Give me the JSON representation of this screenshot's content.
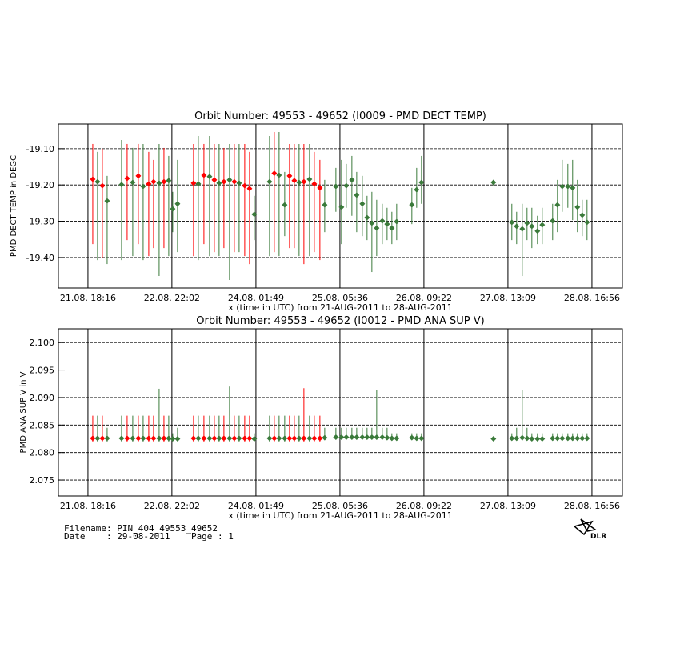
{
  "chart_data": [
    {
      "type": "errorbar",
      "title": "Orbit Number: 49553 - 49652 (I0009 - PMD DECT TEMP)",
      "x_label": "x (time in UTC) from 21-AUG-2011 to 28-AUG-2011",
      "y_label": "PMD DECT TEMP in DEGC",
      "xlim": [
        8.5,
        195
      ],
      "xticks": [
        {
          "value": 18.27,
          "label": "21.08. 18:16"
        },
        {
          "value": 46.03,
          "label": "22.08. 22:02"
        },
        {
          "value": 73.82,
          "label": "24.08. 01:49"
        },
        {
          "value": 101.6,
          "label": "25.08. 05:36"
        },
        {
          "value": 129.37,
          "label": "26.08. 09:22"
        },
        {
          "value": 157.15,
          "label": "27.08. 13:09"
        },
        {
          "value": 184.93,
          "label": "28.08. 16:56"
        }
      ],
      "ylim": [
        -19.484,
        -19.032
      ],
      "yticks": [
        {
          "value": -19.4,
          "label": "-19.40"
        },
        {
          "value": -19.3,
          "label": "-19.30"
        },
        {
          "value": -19.2,
          "label": "-19.20"
        },
        {
          "value": -19.1,
          "label": "-19.10"
        }
      ],
      "grid": true,
      "x": [
        19.86,
        21.44,
        23.03,
        24.62,
        29.38,
        31.23,
        33.08,
        34.93,
        36.52,
        38.37,
        39.96,
        41.81,
        43.4,
        44.98,
        46.3,
        47.89,
        53.18,
        54.77,
        56.62,
        58.47,
        60.06,
        61.64,
        63.23,
        65.08,
        66.67,
        68.26,
        70.11,
        71.7,
        73.28,
        78.31,
        79.89,
        81.48,
        83.33,
        84.92,
        86.51,
        88.09,
        89.68,
        91.53,
        93.12,
        94.97,
        96.56,
        100.26,
        102.11,
        103.7,
        105.55,
        107.14,
        108.99,
        110.57,
        112.16,
        113.75,
        115.6,
        117.19,
        118.77,
        120.36,
        125.38,
        126.97,
        128.56,
        152.36,
        158.44,
        160.03,
        161.88,
        163.47,
        165.06,
        166.91,
        168.49,
        171.93,
        173.52,
        175.11,
        176.96,
        178.54,
        180.13,
        181.72,
        183.31
      ],
      "values": [
        -19.184,
        -19.191,
        -19.202,
        -19.244,
        -19.199,
        -19.182,
        -19.193,
        -19.175,
        -19.204,
        -19.197,
        -19.191,
        -19.195,
        -19.191,
        -19.188,
        -19.266,
        -19.252,
        -19.195,
        -19.197,
        -19.173,
        -19.177,
        -19.186,
        -19.195,
        -19.191,
        -19.186,
        -19.191,
        -19.195,
        -19.202,
        -19.21,
        -19.281,
        -19.191,
        -19.168,
        -19.173,
        -19.255,
        -19.175,
        -19.188,
        -19.193,
        -19.191,
        -19.184,
        -19.197,
        -19.208,
        -19.255,
        -19.204,
        -19.261,
        -19.202,
        -19.186,
        -19.228,
        -19.252,
        -19.29,
        -19.305,
        -19.319,
        -19.299,
        -19.308,
        -19.319,
        -19.301,
        -19.255,
        -19.213,
        -19.193,
        -19.193,
        -19.303,
        -19.314,
        -19.321,
        -19.305,
        -19.314,
        -19.327,
        -19.31,
        -19.299,
        -19.255,
        -19.204,
        -19.204,
        -19.208,
        -19.261,
        -19.283,
        -19.303
      ],
      "low": [
        -19.363,
        -19.407,
        -19.4,
        -19.418,
        -19.407,
        -19.352,
        -19.396,
        -19.363,
        -19.407,
        -19.396,
        -19.374,
        -19.451,
        -19.374,
        -19.396,
        -19.33,
        -19.385,
        -19.396,
        -19.407,
        -19.363,
        -19.396,
        -19.385,
        -19.396,
        -19.374,
        -19.462,
        -19.385,
        -19.385,
        -19.396,
        -19.418,
        -19.352,
        -19.396,
        -19.385,
        -19.396,
        -19.341,
        -19.374,
        -19.374,
        -19.396,
        -19.418,
        -19.396,
        -19.385,
        -19.407,
        -19.33,
        -19.274,
        -19.363,
        -19.263,
        -19.285,
        -19.33,
        -19.341,
        -19.352,
        -19.44,
        -19.396,
        -19.363,
        -19.352,
        -19.363,
        -19.352,
        -19.308,
        -19.263,
        -19.252,
        -19.202,
        -19.352,
        -19.363,
        -19.451,
        -19.352,
        -19.374,
        -19.363,
        -19.363,
        -19.352,
        -19.33,
        -19.274,
        -19.263,
        -19.297,
        -19.33,
        -19.341,
        -19.352
      ],
      "high": [
        -19.087,
        -19.109,
        -19.1,
        -19.175,
        -19.076,
        -19.087,
        -19.098,
        -19.087,
        -19.087,
        -19.109,
        -19.131,
        -19.087,
        -19.098,
        -19.12,
        -19.219,
        -19.131,
        -19.087,
        -19.065,
        -19.087,
        -19.065,
        -19.087,
        -19.087,
        -19.098,
        -19.087,
        -19.087,
        -19.087,
        -19.087,
        -19.109,
        -19.23,
        -19.065,
        -19.054,
        -19.054,
        -19.164,
        -19.087,
        -19.087,
        -19.087,
        -19.087,
        -19.087,
        -19.109,
        -19.131,
        -19.186,
        -19.153,
        -19.131,
        -19.142,
        -19.12,
        -19.164,
        -19.175,
        -19.23,
        -19.219,
        -19.241,
        -19.252,
        -19.263,
        -19.274,
        -19.252,
        -19.208,
        -19.153,
        -19.12,
        -19.186,
        -19.252,
        -19.274,
        -19.252,
        -19.263,
        -19.263,
        -19.285,
        -19.263,
        -19.252,
        -19.186,
        -19.131,
        -19.142,
        -19.131,
        -19.186,
        -19.241,
        -19.241
      ],
      "point_colors": [
        "#ff0000",
        "#3a7a3a",
        "#ff0000",
        "#3a7a3a",
        "#3a7a3a",
        "#ff0000",
        "#3a7a3a",
        "#ff0000",
        "#3a7a3a",
        "#ff0000",
        "#ff0000",
        "#3a7a3a",
        "#ff0000",
        "#3a7a3a",
        "#3a7a3a",
        "#3a7a3a",
        "#ff0000",
        "#3a7a3a",
        "#ff0000",
        "#3a7a3a",
        "#ff0000",
        "#3a7a3a",
        "#ff0000",
        "#3a7a3a",
        "#ff0000",
        "#3a7a3a",
        "#ff0000",
        "#ff0000",
        "#3a7a3a",
        "#3a7a3a",
        "#ff0000",
        "#3a7a3a",
        "#3a7a3a",
        "#ff0000",
        "#ff0000",
        "#3a7a3a",
        "#ff0000",
        "#3a7a3a",
        "#ff0000",
        "#ff0000",
        "#3a7a3a",
        "#3a7a3a",
        "#3a7a3a",
        "#3a7a3a",
        "#3a7a3a",
        "#3a7a3a",
        "#3a7a3a",
        "#3a7a3a",
        "#3a7a3a",
        "#3a7a3a",
        "#3a7a3a",
        "#3a7a3a",
        "#3a7a3a",
        "#3a7a3a",
        "#3a7a3a",
        "#3a7a3a",
        "#3a7a3a",
        "#3a7a3a",
        "#3a7a3a",
        "#3a7a3a",
        "#3a7a3a",
        "#3a7a3a",
        "#3a7a3a",
        "#3a7a3a",
        "#3a7a3a",
        "#3a7a3a",
        "#3a7a3a",
        "#3a7a3a",
        "#3a7a3a",
        "#3a7a3a",
        "#3a7a3a",
        "#3a7a3a",
        "#3a7a3a"
      ]
    },
    {
      "type": "errorbar",
      "title": "Orbit Number: 49553 - 49652 (I0012 - PMD ANA SUP V)",
      "x_label": "x (time in UTC) from 21-AUG-2011 to 28-AUG-2011",
      "y_label": "PMD ANA SUP V in V",
      "xlim": [
        8.5,
        195
      ],
      "xticks": [
        {
          "value": 18.27,
          "label": "21.08. 18:16"
        },
        {
          "value": 46.03,
          "label": "22.08. 22:02"
        },
        {
          "value": 73.82,
          "label": "24.08. 01:49"
        },
        {
          "value": 101.6,
          "label": "25.08. 05:36"
        },
        {
          "value": 129.37,
          "label": "26.08. 09:22"
        },
        {
          "value": 157.15,
          "label": "27.08. 13:09"
        },
        {
          "value": 184.93,
          "label": "28.08. 16:56"
        }
      ],
      "ylim": [
        2.0721,
        2.1025
      ],
      "yticks": [
        2.075,
        {
          "value": 2.08,
          "label": "2.080"
        },
        2.085,
        {
          "value": 2.09,
          "label": "2.090"
        },
        2.095,
        {
          "value": 2.1,
          "label": "2.100"
        }
      ],
      "grid": true,
      "x": [
        19.86,
        21.44,
        23.03,
        24.62,
        29.38,
        31.23,
        33.08,
        34.93,
        36.52,
        38.37,
        39.96,
        41.81,
        43.4,
        44.98,
        46.3,
        47.89,
        53.18,
        54.77,
        56.62,
        58.47,
        60.06,
        61.64,
        63.23,
        65.08,
        66.67,
        68.26,
        70.11,
        71.7,
        73.28,
        78.31,
        79.89,
        81.48,
        83.33,
        84.92,
        86.51,
        88.09,
        89.68,
        91.53,
        93.12,
        94.97,
        96.56,
        100.26,
        102.11,
        103.7,
        105.55,
        107.14,
        108.99,
        110.57,
        112.16,
        113.75,
        115.6,
        117.19,
        118.77,
        120.36,
        125.38,
        126.97,
        128.56,
        152.36,
        158.44,
        160.03,
        161.88,
        163.47,
        165.06,
        166.91,
        168.49,
        171.93,
        173.52,
        175.11,
        176.96,
        178.54,
        180.13,
        181.72,
        183.31
      ],
      "values": [
        2.0826,
        2.0826,
        2.0826,
        2.0826,
        2.0826,
        2.0826,
        2.0826,
        2.0826,
        2.0826,
        2.0826,
        2.0826,
        2.0826,
        2.0826,
        2.0826,
        2.0825,
        2.0825,
        2.0826,
        2.0826,
        2.0826,
        2.0826,
        2.0826,
        2.0826,
        2.0826,
        2.0826,
        2.0826,
        2.0826,
        2.0826,
        2.0826,
        2.0825,
        2.0826,
        2.0826,
        2.0826,
        2.0826,
        2.0826,
        2.0826,
        2.0826,
        2.0826,
        2.0826,
        2.0826,
        2.0826,
        2.0827,
        2.0828,
        2.0828,
        2.0828,
        2.0828,
        2.0828,
        2.0828,
        2.0828,
        2.0828,
        2.0828,
        2.0828,
        2.0827,
        2.0826,
        2.0826,
        2.0827,
        2.0826,
        2.0826,
        2.0825,
        2.0826,
        2.0826,
        2.0827,
        2.0826,
        2.0825,
        2.0825,
        2.0825,
        2.0826,
        2.0826,
        2.0826,
        2.0826,
        2.0826,
        2.0826,
        2.0826,
        2.0826
      ],
      "low": [
        2.082,
        2.082,
        2.082,
        2.082,
        2.082,
        2.082,
        2.082,
        2.082,
        2.082,
        2.082,
        2.082,
        2.082,
        2.082,
        2.082,
        2.0821,
        2.0821,
        2.082,
        2.082,
        2.082,
        2.082,
        2.082,
        2.082,
        2.082,
        2.082,
        2.082,
        2.082,
        2.082,
        2.082,
        2.0821,
        2.082,
        2.082,
        2.082,
        2.082,
        2.082,
        2.082,
        2.082,
        2.082,
        2.082,
        2.082,
        2.082,
        2.0823,
        2.0824,
        2.0824,
        2.0824,
        2.0824,
        2.0824,
        2.0824,
        2.0824,
        2.0824,
        2.0824,
        2.0824,
        2.0823,
        2.0822,
        2.0822,
        2.0823,
        2.0822,
        2.0822,
        2.0823,
        2.0822,
        2.0822,
        2.0822,
        2.0822,
        2.0822,
        2.0822,
        2.0822,
        2.0822,
        2.0822,
        2.0822,
        2.0822,
        2.0822,
        2.0822,
        2.0822,
        2.0822
      ],
      "high": [
        2.0867,
        2.0867,
        2.0867,
        2.0845,
        2.0867,
        2.0867,
        2.0867,
        2.0867,
        2.0867,
        2.0867,
        2.0867,
        2.0916,
        2.0867,
        2.0867,
        2.0835,
        2.0845,
        2.0867,
        2.0867,
        2.0867,
        2.0867,
        2.0867,
        2.0867,
        2.0867,
        2.092,
        2.0867,
        2.0867,
        2.0867,
        2.0867,
        2.0835,
        2.0867,
        2.0867,
        2.0867,
        2.0867,
        2.0867,
        2.0867,
        2.0867,
        2.0917,
        2.0867,
        2.0867,
        2.0867,
        2.0845,
        2.0845,
        2.0845,
        2.0845,
        2.0845,
        2.0845,
        2.0845,
        2.0845,
        2.0845,
        2.0913,
        2.0845,
        2.0845,
        2.0835,
        2.0835,
        2.0835,
        2.0835,
        2.0835,
        2.0828,
        2.0835,
        2.0845,
        2.0913,
        2.0845,
        2.0835,
        2.0835,
        2.0835,
        2.0835,
        2.0835,
        2.0835,
        2.0835,
        2.0835,
        2.0835,
        2.0835,
        2.0835
      ],
      "point_colors": [
        "#ff0000",
        "#3a7a3a",
        "#ff0000",
        "#3a7a3a",
        "#3a7a3a",
        "#ff0000",
        "#3a7a3a",
        "#ff0000",
        "#3a7a3a",
        "#ff0000",
        "#ff0000",
        "#3a7a3a",
        "#ff0000",
        "#3a7a3a",
        "#3a7a3a",
        "#3a7a3a",
        "#ff0000",
        "#3a7a3a",
        "#ff0000",
        "#3a7a3a",
        "#ff0000",
        "#3a7a3a",
        "#ff0000",
        "#3a7a3a",
        "#ff0000",
        "#3a7a3a",
        "#ff0000",
        "#ff0000",
        "#3a7a3a",
        "#3a7a3a",
        "#ff0000",
        "#3a7a3a",
        "#3a7a3a",
        "#ff0000",
        "#ff0000",
        "#3a7a3a",
        "#ff0000",
        "#3a7a3a",
        "#ff0000",
        "#ff0000",
        "#3a7a3a",
        "#3a7a3a",
        "#3a7a3a",
        "#3a7a3a",
        "#3a7a3a",
        "#3a7a3a",
        "#3a7a3a",
        "#3a7a3a",
        "#3a7a3a",
        "#3a7a3a",
        "#3a7a3a",
        "#3a7a3a",
        "#3a7a3a",
        "#3a7a3a",
        "#3a7a3a",
        "#3a7a3a",
        "#3a7a3a",
        "#3a7a3a",
        "#3a7a3a",
        "#3a7a3a",
        "#3a7a3a",
        "#3a7a3a",
        "#3a7a3a",
        "#3a7a3a",
        "#3a7a3a",
        "#3a7a3a",
        "#3a7a3a",
        "#3a7a3a",
        "#3a7a3a",
        "#3a7a3a",
        "#3a7a3a",
        "#3a7a3a",
        "#3a7a3a"
      ]
    }
  ],
  "footer": {
    "filename": "Filename: PIN_404_49553_49652",
    "date": "Date    : 29-08-2011    Page : 1",
    "logo": "DLR"
  }
}
